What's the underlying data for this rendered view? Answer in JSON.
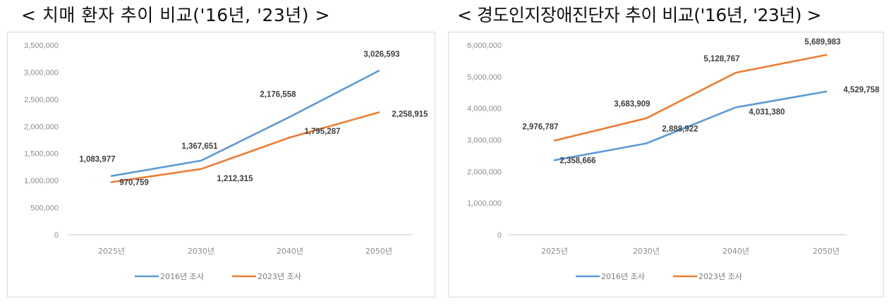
{
  "titles": {
    "left": "< 치매 환자 추이 비교('16년, '23년) >",
    "right": "< 경도인지장애진단자 추이 비교('16년, '23년) >"
  },
  "colors": {
    "series_2016": "#5B9BD5",
    "series_2023": "#ED7D31",
    "axis": "#d9d9d9",
    "border": "#d9d9d9"
  },
  "chart_data": [
    {
      "type": "line",
      "title": "< 치매 환자 추이 비교('16년, '23년) >",
      "xlabel": "",
      "ylabel": "",
      "categories": [
        "2025년",
        "2030년",
        "2040년",
        "2050년"
      ],
      "series": [
        {
          "name": "2016년 조사",
          "color": "#5B9BD5",
          "values": [
            1083977,
            1367651,
            2176558,
            3026593
          ],
          "labels": [
            "1,083,977",
            "1,367,651",
            "2,176,558",
            "3,026,593"
          ]
        },
        {
          "name": "2023년 조사",
          "color": "#ED7D31",
          "values": [
            970759,
            1212315,
            1795287,
            2258915
          ],
          "labels": [
            "970,759",
            "1,212,315",
            "1,795,287",
            "2,258,915"
          ]
        }
      ],
      "ylim": [
        0,
        3500000
      ],
      "yticks": [
        "0",
        "500,000",
        "1,000,000",
        "1,500,000",
        "2,000,000",
        "2,500,000",
        "3,000,000",
        "3,500,000"
      ],
      "grid": false,
      "legend_position": "bottom"
    },
    {
      "type": "line",
      "title": "< 경도인지장애진단자 추이 비교('16년, '23년) >",
      "xlabel": "",
      "ylabel": "",
      "categories": [
        "2025년",
        "2030년",
        "2040년",
        "2050년"
      ],
      "series": [
        {
          "name": "2016년 조사",
          "color": "#5B9BD5",
          "values": [
            2358666,
            2888922,
            4031380,
            4529758
          ],
          "labels": [
            "2,358,666",
            "2,888,922",
            "4,031,380",
            "4,529,758"
          ]
        },
        {
          "name": "2023년 조사",
          "color": "#ED7D31",
          "values": [
            2976787,
            3683909,
            5128767,
            5689983
          ],
          "labels": [
            "2,976,787",
            "3,683,909",
            "5,128,767",
            "5,689,983"
          ]
        }
      ],
      "ylim": [
        0,
        6000000
      ],
      "yticks": [
        "0",
        "1,000,000",
        "2,000,000",
        "3,000,000",
        "4,000,000",
        "5,000,000",
        "6,000,000"
      ],
      "grid": false,
      "legend_position": "bottom"
    }
  ]
}
